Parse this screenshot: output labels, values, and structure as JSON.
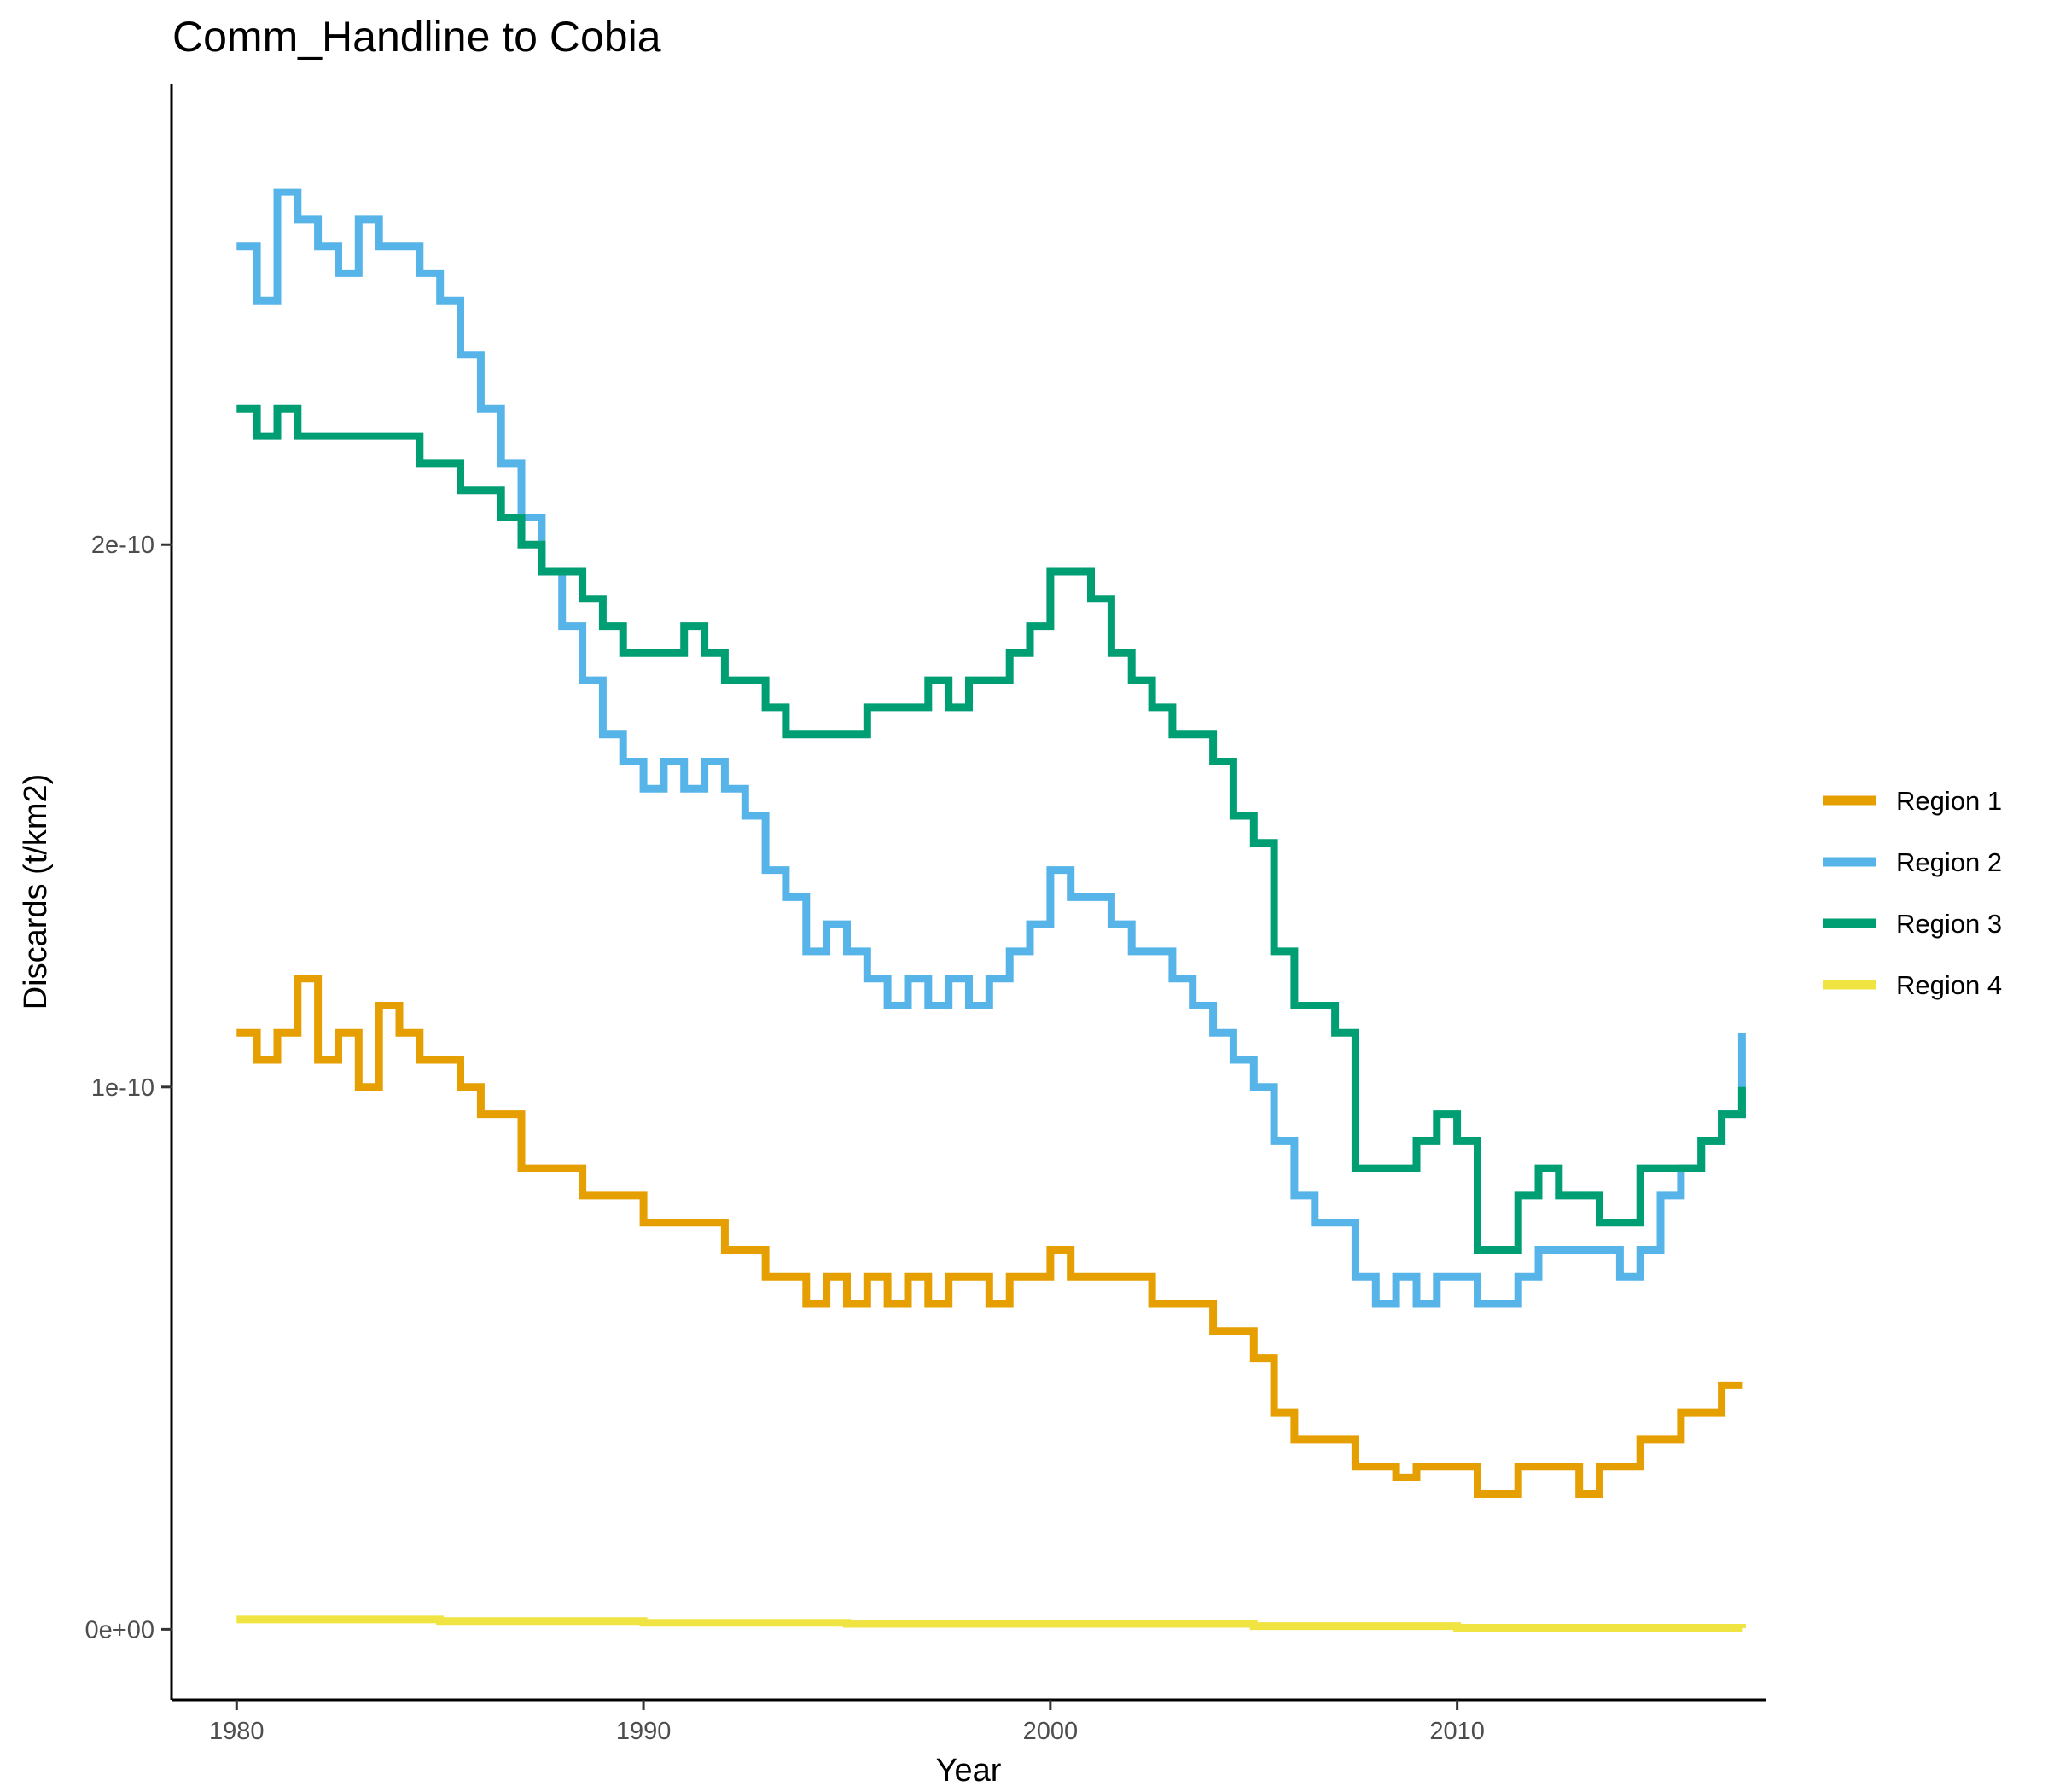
{
  "chart_data": {
    "type": "line",
    "title": "Comm_Handline to Cobia",
    "xlabel": "Year",
    "ylabel": "Discards (t/km2)",
    "xlim": [
      1978.4,
      2017.6
    ],
    "ylim": [
      -1.3e-11,
      2.85e-10
    ],
    "x_ticks": [
      1980,
      1990,
      2000,
      2010
    ],
    "x_tick_labels": [
      "1980",
      "1990",
      "2000",
      "2010"
    ],
    "y_ticks": [
      0,
      1e-10,
      2e-10
    ],
    "y_tick_labels": [
      "0e+00",
      "1e-10",
      "2e-10"
    ],
    "grid": false,
    "legend_position": "right",
    "series": [
      {
        "name": "Region 1",
        "color": "#E69F00",
        "x": [
          1980,
          1980.5,
          1981,
          1981.5,
          1982,
          1982.5,
          1983,
          1983.5,
          1984,
          1984.5,
          1985,
          1985.5,
          1986,
          1986.5,
          1987,
          1987.5,
          1988,
          1988.5,
          1989,
          1989.5,
          1990,
          1990.5,
          1991,
          1991.5,
          1992,
          1992.5,
          1993,
          1993.5,
          1994,
          1994.5,
          1995,
          1995.5,
          1996,
          1996.5,
          1997,
          1997.5,
          1998,
          1998.5,
          1999,
          1999.5,
          2000,
          2000.5,
          2001,
          2001.5,
          2002,
          2002.5,
          2003,
          2003.5,
          2004,
          2004.5,
          2005,
          2005.5,
          2006,
          2006.5,
          2007,
          2007.5,
          2008,
          2008.5,
          2009,
          2009.5,
          2010,
          2010.5,
          2011,
          2011.5,
          2012,
          2012.5,
          2013,
          2013.5,
          2014,
          2014.5,
          2015,
          2015.5,
          2016,
          2016.5,
          2017
        ],
        "values": [
          1.1e-10,
          1.05e-10,
          1.1e-10,
          1.2e-10,
          1.05e-10,
          1.1e-10,
          1e-10,
          1.15e-10,
          1.1e-10,
          1.05e-10,
          1.05e-10,
          1e-10,
          9.5e-11,
          9.5e-11,
          8.5e-11,
          8.5e-11,
          8.5e-11,
          8e-11,
          8e-11,
          8e-11,
          7.5e-11,
          7.5e-11,
          7.5e-11,
          7.5e-11,
          7e-11,
          7e-11,
          6.5e-11,
          6.5e-11,
          6e-11,
          6.5e-11,
          6e-11,
          6.5e-11,
          6e-11,
          6.5e-11,
          6e-11,
          6.5e-11,
          6.5e-11,
          6e-11,
          6.5e-11,
          6.5e-11,
          7e-11,
          6.5e-11,
          6.5e-11,
          6.5e-11,
          6.5e-11,
          6e-11,
          6e-11,
          6e-11,
          5.5e-11,
          5.5e-11,
          5e-11,
          4e-11,
          3.5e-11,
          3.5e-11,
          3.5e-11,
          3e-11,
          3e-11,
          2.8e-11,
          3e-11,
          3e-11,
          3e-11,
          2.5e-11,
          2.5e-11,
          3e-11,
          3e-11,
          3e-11,
          2.5e-11,
          3e-11,
          3e-11,
          3.5e-11,
          3.5e-11,
          4e-11,
          4e-11,
          4.5e-11,
          4.5e-11
        ]
      },
      {
        "name": "Region 2",
        "color": "#56B4E9",
        "x": [
          1980,
          1980.5,
          1981,
          1981.5,
          1982,
          1982.5,
          1983,
          1983.5,
          1984,
          1984.5,
          1985,
          1985.5,
          1986,
          1986.5,
          1987,
          1987.5,
          1988,
          1988.5,
          1989,
          1989.5,
          1990,
          1990.5,
          1991,
          1991.5,
          1992,
          1992.5,
          1993,
          1993.5,
          1994,
          1994.5,
          1995,
          1995.5,
          1996,
          1996.5,
          1997,
          1997.5,
          1998,
          1998.5,
          1999,
          1999.5,
          2000,
          2000.5,
          2001,
          2001.5,
          2002,
          2002.5,
          2003,
          2003.5,
          2004,
          2004.5,
          2005,
          2005.5,
          2006,
          2006.5,
          2007,
          2007.5,
          2008,
          2008.5,
          2009,
          2009.5,
          2010,
          2010.5,
          2011,
          2011.5,
          2012,
          2012.5,
          2013,
          2013.5,
          2014,
          2014.5,
          2015,
          2015.5,
          2016,
          2016.5,
          2017
        ],
        "values": [
          2.55e-10,
          2.45e-10,
          2.65e-10,
          2.6e-10,
          2.55e-10,
          2.5e-10,
          2.6e-10,
          2.55e-10,
          2.55e-10,
          2.5e-10,
          2.45e-10,
          2.35e-10,
          2.25e-10,
          2.15e-10,
          2.05e-10,
          1.95e-10,
          1.85e-10,
          1.75e-10,
          1.65e-10,
          1.6e-10,
          1.55e-10,
          1.6e-10,
          1.55e-10,
          1.6e-10,
          1.55e-10,
          1.5e-10,
          1.4e-10,
          1.35e-10,
          1.25e-10,
          1.3e-10,
          1.25e-10,
          1.2e-10,
          1.15e-10,
          1.2e-10,
          1.15e-10,
          1.2e-10,
          1.15e-10,
          1.2e-10,
          1.25e-10,
          1.3e-10,
          1.4e-10,
          1.35e-10,
          1.35e-10,
          1.3e-10,
          1.25e-10,
          1.25e-10,
          1.2e-10,
          1.15e-10,
          1.1e-10,
          1.05e-10,
          1e-10,
          9e-11,
          8e-11,
          7.5e-11,
          7.5e-11,
          6.5e-11,
          6e-11,
          6.5e-11,
          6e-11,
          6.5e-11,
          6.5e-11,
          6e-11,
          6e-11,
          6.5e-11,
          7e-11,
          7e-11,
          7e-11,
          7e-11,
          6.5e-11,
          7e-11,
          8e-11,
          8.5e-11,
          9e-11,
          9.5e-11,
          1.1e-10
        ]
      },
      {
        "name": "Region 3",
        "color": "#009E73",
        "x": [
          1980,
          1980.5,
          1981,
          1981.5,
          1982,
          1982.5,
          1983,
          1983.5,
          1984,
          1984.5,
          1985,
          1985.5,
          1986,
          1986.5,
          1987,
          1987.5,
          1988,
          1988.5,
          1989,
          1989.5,
          1990,
          1990.5,
          1991,
          1991.5,
          1992,
          1992.5,
          1993,
          1993.5,
          1994,
          1994.5,
          1995,
          1995.5,
          1996,
          1996.5,
          1997,
          1997.5,
          1998,
          1998.5,
          1999,
          1999.5,
          2000,
          2000.5,
          2001,
          2001.5,
          2002,
          2002.5,
          2003,
          2003.5,
          2004,
          2004.5,
          2005,
          2005.5,
          2006,
          2006.5,
          2007,
          2007.5,
          2008,
          2008.5,
          2009,
          2009.5,
          2010,
          2010.5,
          2011,
          2011.5,
          2012,
          2012.5,
          2013,
          2013.5,
          2014,
          2014.5,
          2015,
          2015.5,
          2016,
          2016.5,
          2017
        ],
        "values": [
          2.25e-10,
          2.2e-10,
          2.25e-10,
          2.2e-10,
          2.2e-10,
          2.2e-10,
          2.2e-10,
          2.2e-10,
          2.2e-10,
          2.15e-10,
          2.15e-10,
          2.1e-10,
          2.1e-10,
          2.05e-10,
          2e-10,
          1.95e-10,
          1.95e-10,
          1.9e-10,
          1.85e-10,
          1.8e-10,
          1.8e-10,
          1.8e-10,
          1.85e-10,
          1.8e-10,
          1.75e-10,
          1.75e-10,
          1.7e-10,
          1.65e-10,
          1.65e-10,
          1.65e-10,
          1.65e-10,
          1.7e-10,
          1.7e-10,
          1.7e-10,
          1.75e-10,
          1.7e-10,
          1.75e-10,
          1.75e-10,
          1.8e-10,
          1.85e-10,
          1.95e-10,
          1.95e-10,
          1.9e-10,
          1.8e-10,
          1.75e-10,
          1.7e-10,
          1.65e-10,
          1.65e-10,
          1.6e-10,
          1.5e-10,
          1.45e-10,
          1.25e-10,
          1.15e-10,
          1.15e-10,
          1.1e-10,
          8.5e-11,
          8.5e-11,
          8.5e-11,
          9e-11,
          9.5e-11,
          9e-11,
          7e-11,
          7e-11,
          8e-11,
          8.5e-11,
          8e-11,
          8e-11,
          7.5e-11,
          7.5e-11,
          8.5e-11,
          8.5e-11,
          8.5e-11,
          9e-11,
          9.5e-11,
          1e-10
        ]
      },
      {
        "name": "Region 4",
        "color": "#F0E442",
        "x": [
          1980,
          1985,
          1990,
          1995,
          2000,
          2005,
          2010,
          2017
        ],
        "values": [
          1.8e-12,
          1.5e-12,
          1.2e-12,
          1e-12,
          1e-12,
          6e-13,
          3e-13,
          2e-13
        ]
      }
    ]
  }
}
